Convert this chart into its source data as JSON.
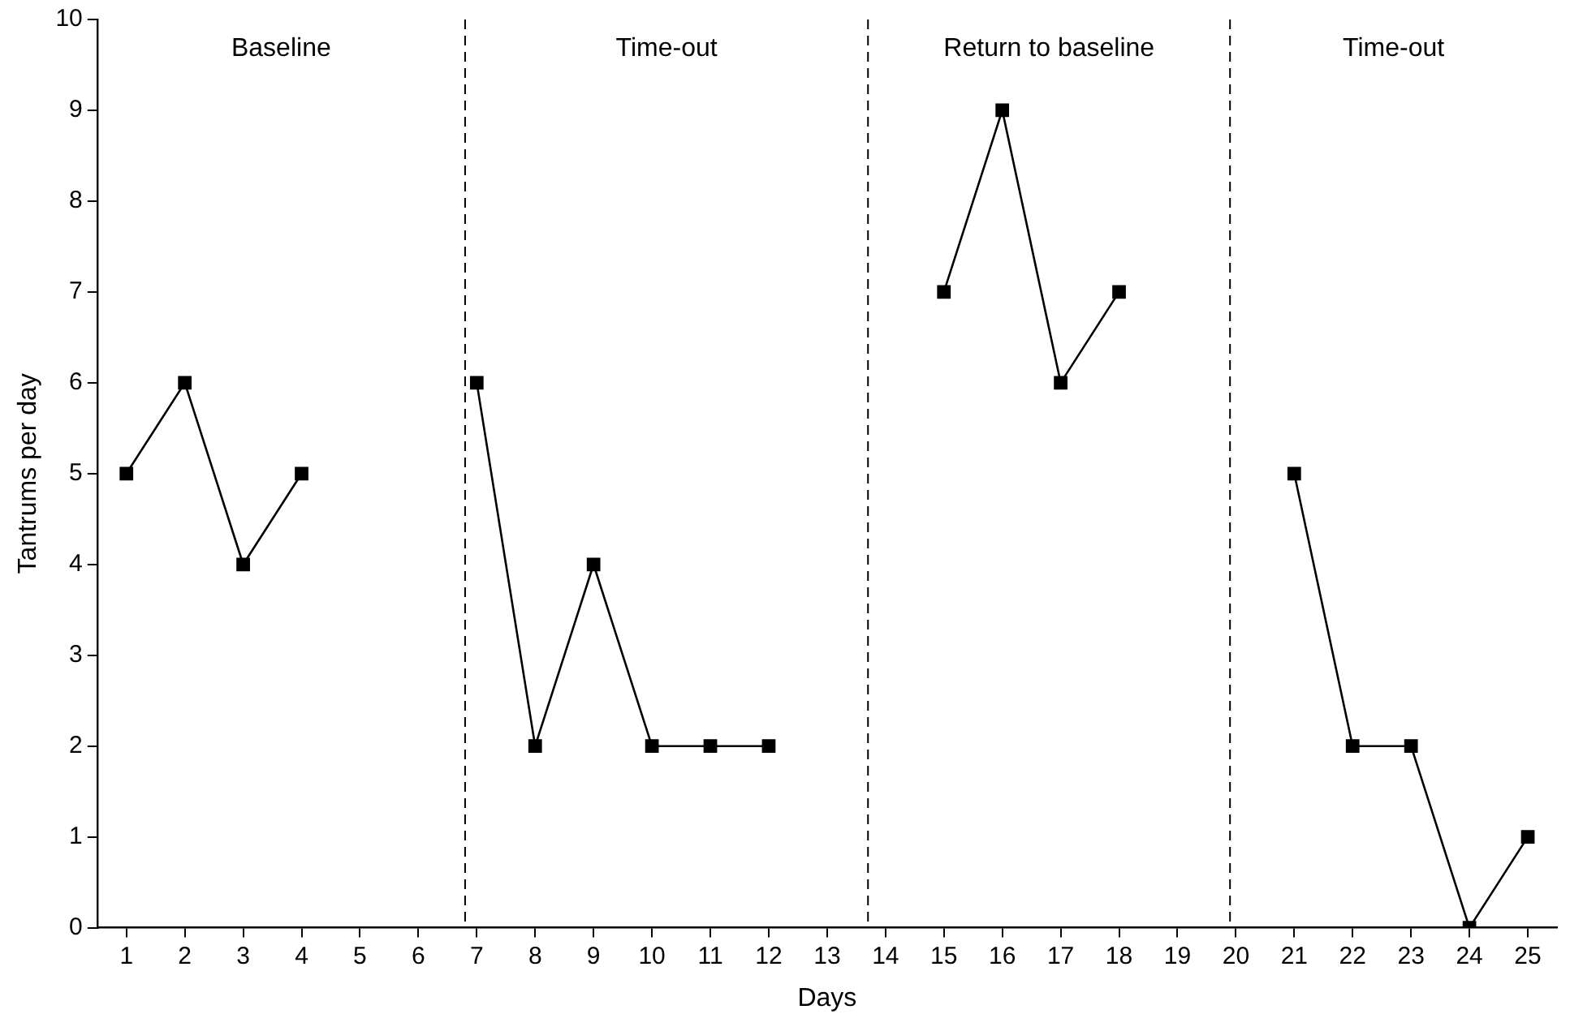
{
  "chart_data": {
    "type": "line",
    "xlabel": "Days",
    "ylabel": "Tantrums per day",
    "x": [
      1,
      2,
      3,
      4,
      5,
      6,
      7,
      8,
      9,
      10,
      11,
      12,
      13,
      14,
      15,
      16,
      17,
      18,
      19,
      20,
      21,
      22,
      23,
      24,
      25
    ],
    "series": [
      {
        "color": "#000000",
        "values": [
          5,
          6,
          4,
          5,
          null,
          null,
          6,
          2,
          4,
          2,
          2,
          2,
          null,
          null,
          7,
          9,
          6,
          7,
          null,
          null,
          5,
          2,
          2,
          0,
          1
        ]
      }
    ],
    "xlim": [
      0.5,
      25.5
    ],
    "xticks": [
      1,
      2,
      3,
      4,
      5,
      6,
      7,
      8,
      9,
      10,
      11,
      12,
      13,
      14,
      15,
      16,
      17,
      18,
      19,
      20,
      21,
      22,
      23,
      24,
      25
    ],
    "ylim": [
      0,
      10
    ],
    "yticks": [
      0,
      1,
      2,
      3,
      4,
      5,
      6,
      7,
      8,
      9,
      10
    ],
    "ref_lines": [
      {
        "axis": "x",
        "value": 6.8,
        "line_style": "dashed",
        "color": "#000000"
      },
      {
        "axis": "x",
        "value": 13.7,
        "line_style": "dashed",
        "color": "#000000"
      },
      {
        "axis": "x",
        "value": 19.9,
        "line_style": "dashed",
        "color": "#000000"
      }
    ],
    "annotations": [
      "Baseline",
      "Time-out",
      "Return to baseline",
      "Time-out"
    ],
    "marker": "square",
    "line_style": "solid",
    "grid": false,
    "legend": false
  }
}
